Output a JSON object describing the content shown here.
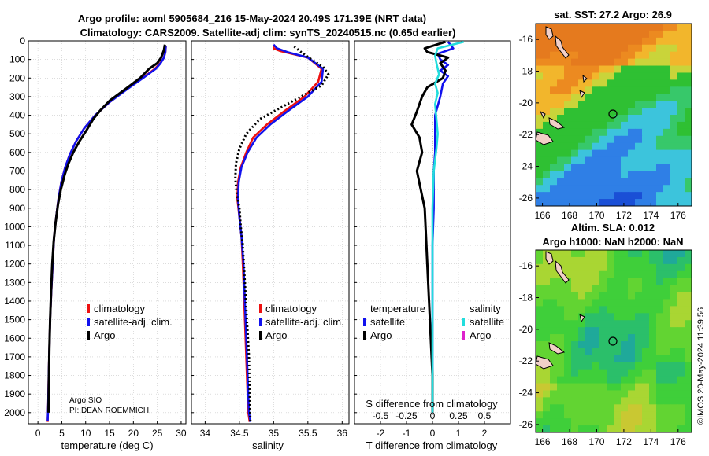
{
  "title_line1": "Argo profile: aoml 5905684_216 15-May-2024 20.49S 171.39E (NRT data)",
  "title_line2": "Climatology: CARS2009. Satellite-adj clim: synTS_20240515.nc (0.65d earlier)",
  "credit": "©IMOS 20-May-2024 11:39:56",
  "colors": {
    "red": "#ee1111",
    "blue": "#1111ee",
    "black": "#000000",
    "cyan": "#22dddd",
    "magenta": "#dd22cc"
  },
  "chart_data": [
    {
      "type": "line",
      "name": "temperature profile",
      "xlabel": "temperature (deg C)",
      "xlim": [
        -2,
        31
      ],
      "ylim": [
        2060,
        0
      ],
      "xticks": [
        0,
        5,
        10,
        15,
        20,
        25,
        30
      ],
      "yticks": [
        0,
        100,
        200,
        300,
        400,
        500,
        600,
        700,
        800,
        900,
        1000,
        1100,
        1200,
        1300,
        1400,
        1500,
        1600,
        1700,
        1800,
        1900,
        2000
      ],
      "legend": [
        "climatology",
        "satellite-adj. clim.",
        "Argo"
      ],
      "footnote": [
        "Argo SIO",
        "PI: DEAN ROEMMICH"
      ],
      "series": [
        {
          "name": "climatology",
          "color": "red",
          "x": [
            26.8,
            26.7,
            26.4,
            25.6,
            24.5,
            21.9,
            18.6,
            15.0,
            12.0,
            9.7,
            8.0,
            6.7,
            5.7,
            4.9,
            4.3,
            3.8,
            3.4,
            3.1,
            2.8,
            2.55,
            2.4,
            2.25,
            2.15,
            2.05
          ],
          "depth": [
            30,
            60,
            90,
            120,
            150,
            200,
            260,
            330,
            400,
            470,
            540,
            610,
            680,
            760,
            850,
            950,
            1050,
            1200,
            1350,
            1500,
            1650,
            1800,
            1950,
            2050
          ]
        },
        {
          "name": "satellite-adj. clim.",
          "color": "blue",
          "x": [
            26.8,
            26.7,
            26.4,
            25.7,
            24.7,
            22.0,
            18.7,
            15.0,
            12.0,
            9.7,
            8.0,
            6.7,
            5.7,
            4.9,
            4.3,
            3.8,
            3.4,
            3.1,
            2.8,
            2.55,
            2.4,
            2.25,
            2.15,
            2.05
          ],
          "depth": [
            25,
            60,
            90,
            120,
            150,
            200,
            260,
            330,
            400,
            470,
            540,
            610,
            680,
            760,
            850,
            950,
            1050,
            1200,
            1350,
            1500,
            1650,
            1800,
            1950,
            2045
          ]
        },
        {
          "name": "Argo",
          "color": "black",
          "x": [
            26.6,
            26.4,
            25.8,
            25.0,
            23.3,
            21.4,
            18.3,
            15.1,
            13.2,
            11.6,
            10.2,
            8.7,
            7.4,
            6.4,
            5.6,
            4.8,
            4.2,
            3.7,
            3.3,
            3.0,
            2.75,
            2.55,
            2.4,
            2.3,
            2.2
          ],
          "depth": [
            20,
            50,
            90,
            120,
            150,
            200,
            260,
            320,
            370,
            420,
            480,
            540,
            600,
            660,
            720,
            800,
            880,
            980,
            1080,
            1200,
            1350,
            1500,
            1650,
            1800,
            2000
          ]
        }
      ]
    },
    {
      "type": "line",
      "name": "salinity profile",
      "xlabel": "salinity",
      "xlim": [
        33.8,
        36.1
      ],
      "ylim": [
        2060,
        0
      ],
      "xticks": [
        34,
        34.5,
        35,
        35.5,
        36
      ],
      "legend": [
        "climatology",
        "satellite-adj. clim.",
        "Argo"
      ],
      "series": [
        {
          "name": "climatology",
          "color": "red",
          "x": [
            35.0,
            35.0,
            35.1,
            35.5,
            35.7,
            35.65,
            35.45,
            35.15,
            34.9,
            34.7,
            34.6,
            34.52,
            34.48,
            34.47,
            34.5,
            34.53,
            34.55,
            34.57,
            34.59,
            34.61,
            34.63,
            34.65
          ],
          "depth": [
            20,
            40,
            55,
            90,
            150,
            220,
            300,
            380,
            450,
            520,
            600,
            680,
            760,
            850,
            950,
            1050,
            1200,
            1400,
            1600,
            1800,
            2000,
            2050
          ]
        },
        {
          "name": "satellite-adj. clim.",
          "color": "blue",
          "x": [
            35.0,
            35.05,
            35.2,
            35.5,
            35.72,
            35.7,
            35.5,
            35.2,
            34.95,
            34.75,
            34.62,
            34.53,
            34.49,
            34.48,
            34.5,
            34.53,
            34.56,
            34.58,
            34.6,
            34.62,
            34.64,
            34.66
          ],
          "depth": [
            20,
            40,
            60,
            90,
            150,
            220,
            300,
            380,
            450,
            520,
            600,
            680,
            760,
            850,
            950,
            1050,
            1200,
            1400,
            1600,
            1800,
            2000,
            2050
          ]
        },
        {
          "name": "Argo",
          "color": "black",
          "x": [
            35.3,
            35.4,
            35.55,
            35.72,
            35.8,
            35.7,
            35.4,
            35.1,
            34.8,
            34.6,
            34.5,
            34.45,
            34.44,
            34.46,
            34.5,
            34.52,
            34.55,
            34.58,
            34.61,
            34.64,
            34.65,
            34.66
          ],
          "depth": [
            30,
            60,
            100,
            140,
            180,
            240,
            300,
            360,
            420,
            500,
            580,
            660,
            740,
            820,
            900,
            1000,
            1100,
            1300,
            1500,
            1700,
            1900,
            2050
          ]
        }
      ]
    },
    {
      "type": "line",
      "name": "difference from climatology",
      "xlabel": "T difference from climatology",
      "xlabel_top": "S difference from climatology",
      "xlim": [
        -3,
        3
      ],
      "ylim": [
        2060,
        0
      ],
      "xticks": [
        -2,
        -1,
        0,
        1,
        2
      ],
      "xticks_top": [
        -0.5,
        -0.25,
        0,
        0.25,
        0.5
      ],
      "xtick_top_labels": [
        "-0.5",
        "-0.25",
        "0",
        "0.25",
        "0.5"
      ],
      "legend_left_title": "temperature",
      "legend_right_title": "salinity",
      "legend_left": [
        "satellite",
        "Argo"
      ],
      "legend_right": [
        "satellite",
        "Argo"
      ],
      "series": [
        {
          "name": "T satellite",
          "color": "blue",
          "x": [
            0.6,
            0.8,
            0.2,
            0.3,
            0.6,
            0.3,
            0.6,
            0.4,
            0.3,
            0.1,
            0.1,
            0.1,
            0.05,
            0.05,
            0,
            0,
            0,
            0
          ],
          "depth": [
            5,
            40,
            70,
            100,
            130,
            160,
            190,
            230,
            300,
            400,
            500,
            600,
            700,
            900,
            1100,
            1400,
            1700,
            2000
          ]
        },
        {
          "name": "T Argo",
          "color": "black",
          "x": [
            0.5,
            -0.3,
            -0.2,
            0.6,
            0.3,
            0.5,
            0.4,
            -0.2,
            -0.4,
            -0.6,
            -0.8,
            -0.5,
            -0.4,
            -0.6,
            -0.3,
            -0.2,
            -0.1,
            0,
            0
          ],
          "depth": [
            5,
            40,
            60,
            90,
            120,
            160,
            200,
            250,
            300,
            380,
            450,
            520,
            600,
            700,
            900,
            1200,
            1500,
            1800,
            2000
          ]
        },
        {
          "name": "S satellite",
          "color": "cyan",
          "x": [
            1.2,
            0.2,
            0.1,
            0.15,
            0.25,
            0.1,
            0.2,
            0.1,
            0.15,
            0.2,
            0.15,
            0.05,
            0,
            0,
            0
          ],
          "depth": [
            5,
            40,
            80,
            120,
            180,
            230,
            280,
            340,
            420,
            500,
            580,
            700,
            900,
            1400,
            2000
          ]
        }
      ]
    },
    {
      "type": "heatmap",
      "name": "sat SST map",
      "title": "sat. SST: 27.2 Argo: 26.9",
      "xticks": [
        166,
        168,
        170,
        172,
        174,
        176
      ],
      "yticks": [
        -16,
        -18,
        -20,
        -22,
        -24,
        -26
      ],
      "xlim": [
        165.5,
        177
      ],
      "ylim": [
        -26.5,
        -15
      ],
      "marker": {
        "lon": 171.39,
        "lat": -20.49
      }
    },
    {
      "type": "heatmap",
      "name": "altimetry SLA map",
      "title_line1": "Altim. SLA: 0.012",
      "title_line2": "Argo h1000: NaN h2000: NaN",
      "xticks": [
        166,
        168,
        170,
        172,
        174,
        176
      ],
      "yticks": [
        -16,
        -18,
        -20,
        -22,
        -24,
        -26
      ],
      "xlim": [
        165.5,
        177
      ],
      "ylim": [
        -26.5,
        -15
      ],
      "marker": {
        "lon": 171.39,
        "lat": -20.49
      }
    }
  ]
}
